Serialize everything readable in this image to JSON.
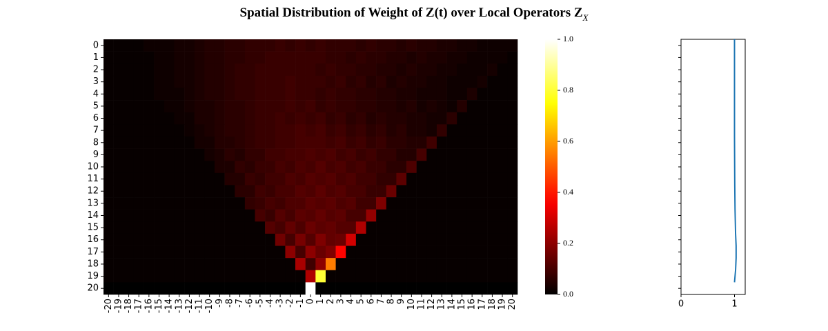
{
  "chart_data": [
    {
      "type": "heatmap",
      "title": "Spatial Distribution of Weight of Z(t) over Local Operators Z",
      "title_subscript": "X",
      "cmap": "hot",
      "x_labels": [
        -20,
        -19,
        -18,
        -17,
        -16,
        -15,
        -14,
        -13,
        -12,
        -11,
        -10,
        -9,
        -8,
        -7,
        -6,
        -5,
        -4,
        -3,
        -2,
        -1,
        0,
        1,
        2,
        3,
        4,
        5,
        6,
        7,
        8,
        9,
        10,
        11,
        12,
        13,
        14,
        15,
        16,
        17,
        18,
        19,
        20
      ],
      "y_labels": [
        0,
        1,
        2,
        3,
        4,
        5,
        6,
        7,
        8,
        9,
        10,
        11,
        12,
        13,
        14,
        15,
        16,
        17,
        18,
        19,
        20
      ],
      "zlim": [
        0,
        1
      ],
      "zticks": [
        {
          "value": 0,
          "label": "0.0"
        },
        0.2,
        0.4,
        0.6,
        0.8,
        {
          "value": 1,
          "label": "1.0"
        }
      ],
      "values": [
        [
          0.01,
          0.01,
          0.01,
          0.01,
          0.02,
          0.02,
          0.02,
          0.03,
          0.03,
          0.04,
          0.05,
          0.05,
          0.06,
          0.06,
          0.07,
          0.07,
          0.07,
          0.08,
          0.07,
          0.08,
          0.07,
          0.08,
          0.07,
          0.07,
          0.07,
          0.06,
          0.07,
          0.06,
          0.06,
          0.05,
          0.06,
          0.05,
          0.05,
          0.04,
          0.04,
          0.03,
          0.03,
          0.02,
          0.02,
          0.02,
          0.02
        ],
        [
          0.01,
          0.01,
          0.01,
          0.01,
          0.01,
          0.02,
          0.02,
          0.03,
          0.03,
          0.04,
          0.05,
          0.05,
          0.06,
          0.06,
          0.07,
          0.07,
          0.08,
          0.08,
          0.08,
          0.08,
          0.08,
          0.08,
          0.07,
          0.07,
          0.06,
          0.07,
          0.06,
          0.06,
          0.05,
          0.05,
          0.04,
          0.05,
          0.04,
          0.04,
          0.03,
          0.03,
          0.02,
          0.02,
          0.02,
          0.02,
          0.01
        ],
        [
          0.01,
          0.01,
          0.01,
          0.01,
          0.01,
          0.02,
          0.02,
          0.03,
          0.03,
          0.04,
          0.05,
          0.05,
          0.06,
          0.07,
          0.07,
          0.08,
          0.08,
          0.08,
          0.08,
          0.08,
          0.08,
          0.07,
          0.08,
          0.07,
          0.07,
          0.06,
          0.06,
          0.05,
          0.05,
          0.04,
          0.05,
          0.04,
          0.04,
          0.03,
          0.03,
          0.02,
          0.02,
          0.02,
          0.03,
          0.01,
          0.01
        ],
        [
          0.01,
          0.01,
          0.01,
          0.01,
          0.01,
          0.02,
          0.02,
          0.03,
          0.03,
          0.04,
          0.05,
          0.05,
          0.06,
          0.07,
          0.07,
          0.08,
          0.08,
          0.08,
          0.09,
          0.08,
          0.08,
          0.08,
          0.07,
          0.08,
          0.06,
          0.07,
          0.05,
          0.06,
          0.04,
          0.05,
          0.04,
          0.04,
          0.03,
          0.03,
          0.02,
          0.02,
          0.02,
          0.03,
          0.01,
          0.01,
          0.01
        ],
        [
          0.01,
          0.01,
          0.01,
          0.01,
          0.01,
          0.02,
          0.02,
          0.02,
          0.03,
          0.04,
          0.05,
          0.05,
          0.06,
          0.07,
          0.07,
          0.08,
          0.08,
          0.08,
          0.09,
          0.08,
          0.08,
          0.07,
          0.08,
          0.07,
          0.07,
          0.06,
          0.06,
          0.05,
          0.05,
          0.04,
          0.04,
          0.03,
          0.03,
          0.03,
          0.02,
          0.02,
          0.04,
          0.01,
          0.01,
          0.01,
          0.01
        ],
        [
          0.01,
          0.01,
          0.01,
          0.01,
          0.01,
          0.01,
          0.02,
          0.02,
          0.03,
          0.04,
          0.04,
          0.05,
          0.06,
          0.06,
          0.07,
          0.08,
          0.08,
          0.08,
          0.09,
          0.08,
          0.09,
          0.07,
          0.08,
          0.07,
          0.07,
          0.06,
          0.06,
          0.05,
          0.05,
          0.04,
          0.05,
          0.03,
          0.04,
          0.03,
          0.02,
          0.05,
          0.01,
          0.01,
          0.01,
          0.01,
          0.01
        ],
        [
          0.01,
          0.01,
          0.01,
          0.01,
          0.01,
          0.01,
          0.01,
          0.02,
          0.02,
          0.04,
          0.04,
          0.05,
          0.06,
          0.06,
          0.07,
          0.08,
          0.08,
          0.09,
          0.08,
          0.09,
          0.08,
          0.09,
          0.07,
          0.08,
          0.06,
          0.07,
          0.05,
          0.06,
          0.05,
          0.05,
          0.04,
          0.04,
          0.03,
          0.03,
          0.06,
          0.01,
          0.01,
          0.01,
          0.01,
          0.01,
          0.01
        ],
        [
          0.01,
          0.01,
          0.01,
          0.01,
          0.01,
          0.01,
          0.01,
          0.01,
          0.02,
          0.03,
          0.04,
          0.05,
          0.06,
          0.06,
          0.07,
          0.08,
          0.08,
          0.09,
          0.09,
          0.1,
          0.09,
          0.1,
          0.08,
          0.09,
          0.07,
          0.08,
          0.06,
          0.07,
          0.05,
          0.06,
          0.04,
          0.04,
          0.03,
          0.07,
          0.01,
          0.01,
          0.01,
          0.01,
          0.01,
          0.01,
          0.01
        ],
        [
          0.01,
          0.01,
          0.01,
          0.01,
          0.01,
          0.01,
          0.01,
          0.01,
          0.01,
          0.03,
          0.03,
          0.05,
          0.05,
          0.06,
          0.07,
          0.08,
          0.08,
          0.09,
          0.09,
          0.1,
          0.1,
          0.1,
          0.09,
          0.1,
          0.08,
          0.09,
          0.07,
          0.08,
          0.06,
          0.06,
          0.05,
          0.05,
          0.09,
          0.01,
          0.01,
          0.01,
          0.01,
          0.01,
          0.01,
          0.01,
          0.01
        ],
        [
          0.01,
          0.01,
          0.01,
          0.01,
          0.01,
          0.01,
          0.01,
          0.01,
          0.01,
          0.01,
          0.03,
          0.04,
          0.06,
          0.05,
          0.07,
          0.07,
          0.09,
          0.09,
          0.1,
          0.1,
          0.11,
          0.1,
          0.11,
          0.09,
          0.1,
          0.08,
          0.09,
          0.07,
          0.07,
          0.05,
          0.05,
          0.1,
          0.01,
          0.01,
          0.01,
          0.01,
          0.01,
          0.01,
          0.01,
          0.01,
          0.01
        ],
        [
          0.01,
          0.01,
          0.01,
          0.01,
          0.01,
          0.01,
          0.01,
          0.01,
          0.01,
          0.01,
          0.01,
          0.04,
          0.04,
          0.07,
          0.06,
          0.08,
          0.08,
          0.1,
          0.09,
          0.11,
          0.1,
          0.12,
          0.1,
          0.11,
          0.09,
          0.1,
          0.08,
          0.08,
          0.06,
          0.06,
          0.11,
          0.01,
          0.01,
          0.01,
          0.01,
          0.01,
          0.01,
          0.01,
          0.01,
          0.01,
          0.01
        ],
        [
          0.01,
          0.01,
          0.01,
          0.01,
          0.01,
          0.01,
          0.01,
          0.01,
          0.01,
          0.01,
          0.01,
          0.01,
          0.05,
          0.05,
          0.08,
          0.07,
          0.09,
          0.09,
          0.11,
          0.1,
          0.12,
          0.11,
          0.12,
          0.1,
          0.11,
          0.09,
          0.09,
          0.07,
          0.07,
          0.13,
          0.01,
          0.01,
          0.01,
          0.01,
          0.01,
          0.01,
          0.01,
          0.01,
          0.01,
          0.01,
          0.01
        ],
        [
          0.01,
          0.01,
          0.01,
          0.01,
          0.01,
          0.01,
          0.01,
          0.01,
          0.01,
          0.01,
          0.01,
          0.01,
          0.01,
          0.06,
          0.06,
          0.09,
          0.08,
          0.1,
          0.1,
          0.12,
          0.11,
          0.13,
          0.11,
          0.12,
          0.1,
          0.1,
          0.08,
          0.08,
          0.15,
          0.01,
          0.01,
          0.01,
          0.01,
          0.01,
          0.01,
          0.01,
          0.01,
          0.01,
          0.01,
          0.01,
          0.01
        ],
        [
          0.01,
          0.01,
          0.01,
          0.01,
          0.01,
          0.01,
          0.01,
          0.01,
          0.01,
          0.01,
          0.01,
          0.01,
          0.01,
          0.01,
          0.07,
          0.08,
          0.1,
          0.09,
          0.11,
          0.11,
          0.13,
          0.12,
          0.13,
          0.11,
          0.12,
          0.09,
          0.09,
          0.18,
          0.01,
          0.01,
          0.01,
          0.01,
          0.01,
          0.01,
          0.01,
          0.01,
          0.01,
          0.01,
          0.01,
          0.01,
          0.01
        ],
        [
          0.01,
          0.01,
          0.01,
          0.01,
          0.01,
          0.01,
          0.01,
          0.01,
          0.01,
          0.01,
          0.01,
          0.01,
          0.01,
          0.01,
          0.01,
          0.1,
          0.08,
          0.12,
          0.1,
          0.13,
          0.12,
          0.14,
          0.12,
          0.13,
          0.1,
          0.1,
          0.21,
          0.01,
          0.01,
          0.01,
          0.01,
          0.01,
          0.01,
          0.01,
          0.01,
          0.01,
          0.01,
          0.01,
          0.01,
          0.01,
          0.01
        ],
        [
          0.01,
          0.01,
          0.01,
          0.01,
          0.01,
          0.01,
          0.01,
          0.01,
          0.01,
          0.01,
          0.01,
          0.01,
          0.01,
          0.01,
          0.01,
          0.01,
          0.12,
          0.1,
          0.14,
          0.11,
          0.15,
          0.13,
          0.14,
          0.12,
          0.12,
          0.25,
          0.01,
          0.01,
          0.01,
          0.01,
          0.01,
          0.01,
          0.01,
          0.01,
          0.01,
          0.01,
          0.01,
          0.01,
          0.01,
          0.01,
          0.01
        ],
        [
          0.01,
          0.01,
          0.01,
          0.01,
          0.01,
          0.01,
          0.01,
          0.01,
          0.01,
          0.01,
          0.01,
          0.01,
          0.01,
          0.01,
          0.01,
          0.01,
          0.01,
          0.16,
          0.1,
          0.17,
          0.12,
          0.18,
          0.14,
          0.15,
          0.3,
          0.01,
          0.01,
          0.01,
          0.01,
          0.01,
          0.01,
          0.01,
          0.01,
          0.01,
          0.01,
          0.01,
          0.01,
          0.01,
          0.01,
          0.01,
          0.01
        ],
        [
          0.01,
          0.01,
          0.01,
          0.01,
          0.01,
          0.01,
          0.01,
          0.01,
          0.01,
          0.01,
          0.01,
          0.01,
          0.01,
          0.01,
          0.01,
          0.01,
          0.01,
          0.01,
          0.2,
          0.1,
          0.2,
          0.15,
          0.18,
          0.37,
          0.01,
          0.01,
          0.01,
          0.01,
          0.01,
          0.01,
          0.01,
          0.01,
          0.01,
          0.01,
          0.01,
          0.01,
          0.01,
          0.01,
          0.01,
          0.01,
          0.01
        ],
        [
          0.01,
          0.01,
          0.01,
          0.01,
          0.01,
          0.01,
          0.01,
          0.01,
          0.01,
          0.01,
          0.01,
          0.01,
          0.01,
          0.01,
          0.01,
          0.01,
          0.01,
          0.01,
          0.01,
          0.24,
          0.09,
          0.2,
          0.55,
          0.01,
          0.01,
          0.01,
          0.01,
          0.01,
          0.01,
          0.01,
          0.01,
          0.01,
          0.01,
          0.01,
          0.01,
          0.01,
          0.01,
          0.01,
          0.01,
          0.01,
          0.01
        ],
        [
          0.01,
          0.01,
          0.01,
          0.01,
          0.01,
          0.01,
          0.01,
          0.01,
          0.01,
          0.01,
          0.01,
          0.01,
          0.01,
          0.01,
          0.01,
          0.01,
          0.01,
          0.01,
          0.01,
          0.01,
          0.25,
          0.8,
          0.01,
          0.01,
          0.01,
          0.01,
          0.01,
          0.01,
          0.01,
          0.01,
          0.01,
          0.01,
          0.01,
          0.01,
          0.01,
          0.01,
          0.01,
          0.01,
          0.01,
          0.01,
          0.01
        ],
        [
          0,
          0,
          0,
          0,
          0,
          0,
          0,
          0,
          0,
          0,
          0,
          0,
          0,
          0,
          0,
          0,
          0,
          0,
          0,
          0,
          1,
          0,
          0,
          0,
          0,
          0,
          0,
          0,
          0,
          0,
          0,
          0,
          0,
          0,
          0,
          0,
          0,
          0,
          0,
          0,
          0
        ]
      ]
    },
    {
      "type": "line",
      "color": "#1f77b4",
      "xlim": [
        0,
        1.2
      ],
      "xticks": [
        0,
        1
      ],
      "ylim": [
        21,
        0
      ],
      "yticks": [
        0.5,
        1.5,
        2.5,
        3.5,
        4.5,
        5.5,
        6.5,
        7.5,
        8.5,
        9.5,
        10.5,
        11.5,
        12.5,
        13.5,
        14.5,
        15.5,
        16.5,
        17.5,
        18.5,
        19.5,
        20.5
      ],
      "positions": [
        0,
        4,
        8,
        12,
        14,
        15,
        16,
        17,
        18,
        19,
        19.5,
        20
      ],
      "values": [
        1,
        1,
        1,
        1.005,
        1.01,
        1.015,
        1.02,
        1.03,
        1.03,
        1.02,
        1.01,
        1.0
      ]
    }
  ]
}
